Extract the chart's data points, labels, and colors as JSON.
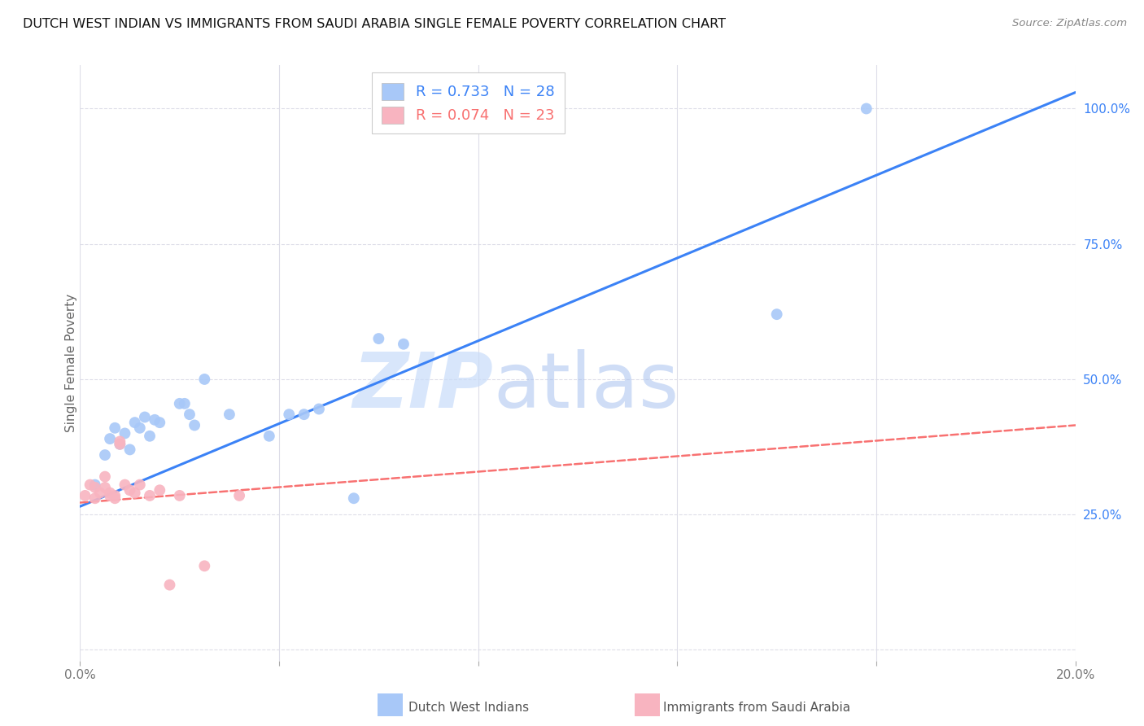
{
  "title": "DUTCH WEST INDIAN VS IMMIGRANTS FROM SAUDI ARABIA SINGLE FEMALE POVERTY CORRELATION CHART",
  "source": "Source: ZipAtlas.com",
  "ylabel": "Single Female Poverty",
  "watermark": "ZIPatlas",
  "xlim": [
    0.0,
    0.2
  ],
  "ylim": [
    -0.02,
    1.08
  ],
  "x_ticks": [
    0.0,
    0.04,
    0.08,
    0.12,
    0.16,
    0.2
  ],
  "x_tick_labels": [
    "0.0%",
    "",
    "",
    "",
    "",
    "20.0%"
  ],
  "y_ticks_right": [
    0.0,
    0.25,
    0.5,
    0.75,
    1.0
  ],
  "y_tick_labels_right": [
    "",
    "25.0%",
    "50.0%",
    "75.0%",
    "100.0%"
  ],
  "legend_blue_r": "R = 0.733",
  "legend_blue_n": "N = 28",
  "legend_pink_r": "R = 0.074",
  "legend_pink_n": "N = 23",
  "blue_color": "#A8C8F8",
  "pink_color": "#F8B4C0",
  "blue_line_color": "#3B82F6",
  "pink_line_color": "#F87171",
  "grid_color": "#DDDDE8",
  "blue_scatter_x": [
    0.003,
    0.005,
    0.006,
    0.007,
    0.008,
    0.009,
    0.01,
    0.011,
    0.012,
    0.013,
    0.014,
    0.015,
    0.016,
    0.02,
    0.021,
    0.022,
    0.023,
    0.025,
    0.03,
    0.038,
    0.042,
    0.045,
    0.048,
    0.055,
    0.06,
    0.065,
    0.14,
    0.158
  ],
  "blue_scatter_y": [
    0.305,
    0.36,
    0.39,
    0.41,
    0.38,
    0.4,
    0.37,
    0.42,
    0.41,
    0.43,
    0.395,
    0.425,
    0.42,
    0.455,
    0.455,
    0.435,
    0.415,
    0.5,
    0.435,
    0.395,
    0.435,
    0.435,
    0.445,
    0.28,
    0.575,
    0.565,
    0.62,
    1.0
  ],
  "pink_scatter_x": [
    0.001,
    0.002,
    0.003,
    0.003,
    0.004,
    0.005,
    0.005,
    0.006,
    0.006,
    0.007,
    0.007,
    0.008,
    0.008,
    0.009,
    0.01,
    0.011,
    0.012,
    0.014,
    0.016,
    0.018,
    0.02,
    0.025,
    0.032
  ],
  "pink_scatter_y": [
    0.285,
    0.305,
    0.28,
    0.3,
    0.29,
    0.3,
    0.32,
    0.285,
    0.29,
    0.285,
    0.28,
    0.385,
    0.38,
    0.305,
    0.295,
    0.29,
    0.305,
    0.285,
    0.295,
    0.12,
    0.285,
    0.155,
    0.285
  ],
  "blue_line_x": [
    0.0,
    0.2
  ],
  "blue_line_y": [
    0.265,
    1.03
  ],
  "pink_line_x": [
    0.0,
    0.2
  ],
  "pink_line_y": [
    0.272,
    0.415
  ],
  "background_color": "#FFFFFF"
}
